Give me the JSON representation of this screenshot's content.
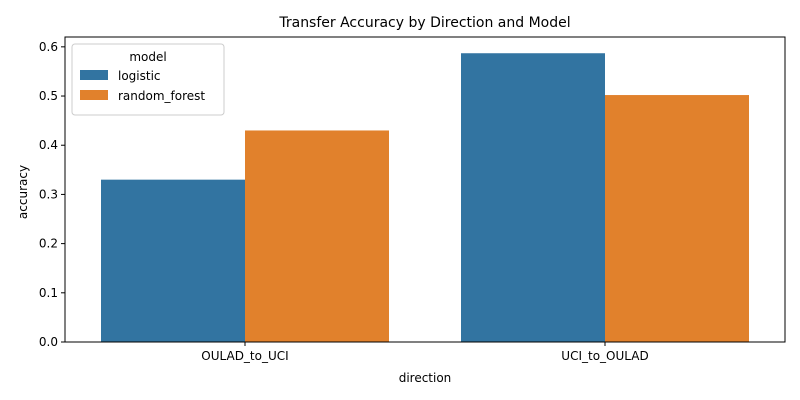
{
  "chart_data": {
    "type": "bar",
    "title": "Transfer Accuracy by Direction and Model",
    "xlabel": "direction",
    "ylabel": "accuracy",
    "categories": [
      "OULAD_to_UCI",
      "UCI_to_OULAD"
    ],
    "series": [
      {
        "name": "logistic",
        "values": [
          0.33,
          0.587
        ],
        "color": "#3274a1"
      },
      {
        "name": "random_forest",
        "values": [
          0.43,
          0.502
        ],
        "color": "#e1812c"
      }
    ],
    "ylim": [
      0,
      0.62
    ],
    "yticks": [
      0.0,
      0.1,
      0.2,
      0.3,
      0.4,
      0.5,
      0.6
    ],
    "ytick_labels": [
      "0.0",
      "0.1",
      "0.2",
      "0.3",
      "0.4",
      "0.5",
      "0.6"
    ],
    "grid": false,
    "legend": {
      "title": "model",
      "placement": "top-left"
    }
  }
}
